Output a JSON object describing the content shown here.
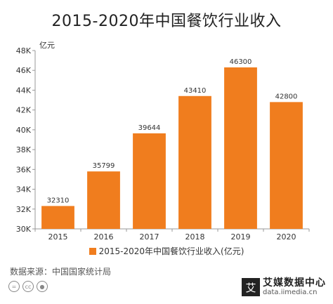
{
  "colors": {
    "bar": "#F07D1E",
    "axis": "#999999",
    "grid": "#dddddd",
    "text": "#333333"
  },
  "title": "2015-2020年中国餐饮行业收入",
  "unit_label": "亿元",
  "legend_label": "2015-2020年中国餐饮行业收入(亿元)",
  "source": "数据来源：中国国家统计局",
  "cc_icons": [
    "equals-icon",
    "cc-icon",
    "person-icon"
  ],
  "logo": {
    "mark": "艾",
    "name": "艾媒数据中心",
    "url": "data.iimedia.cn"
  },
  "chart_data": {
    "type": "bar",
    "title": "2015-2020年中国餐饮行业收入",
    "ylabel": "亿元",
    "xlabel": "",
    "categories": [
      "2015",
      "2016",
      "2017",
      "2018",
      "2019",
      "2020"
    ],
    "series": [
      {
        "name": "2015-2020年中国餐饮行业收入(亿元)",
        "values": [
          32310,
          35799,
          39644,
          43410,
          46300,
          42800
        ]
      }
    ],
    "ylim": [
      30000,
      48000
    ],
    "yticks": [
      30000,
      32000,
      34000,
      36000,
      38000,
      40000,
      42000,
      44000,
      46000,
      48000
    ],
    "ytick_labels": [
      "30K",
      "32K",
      "34K",
      "36K",
      "38K",
      "40K",
      "42K",
      "44K",
      "46K",
      "48K"
    ],
    "data_labels": [
      "32310",
      "35799",
      "39644",
      "43410",
      "46300",
      "42800"
    ],
    "grid": false,
    "legend": "bottom-center"
  }
}
